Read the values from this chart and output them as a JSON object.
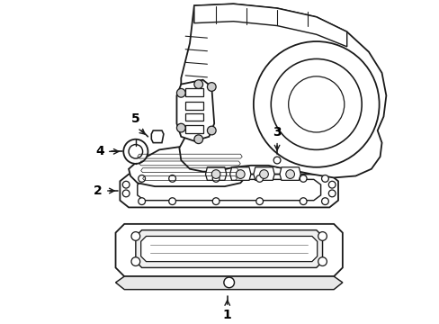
{
  "background_color": "#ffffff",
  "line_color": "#1a1a1a",
  "line_width": 1.3,
  "label_color": "#000000",
  "figsize": [
    4.89,
    3.6
  ],
  "dpi": 100
}
